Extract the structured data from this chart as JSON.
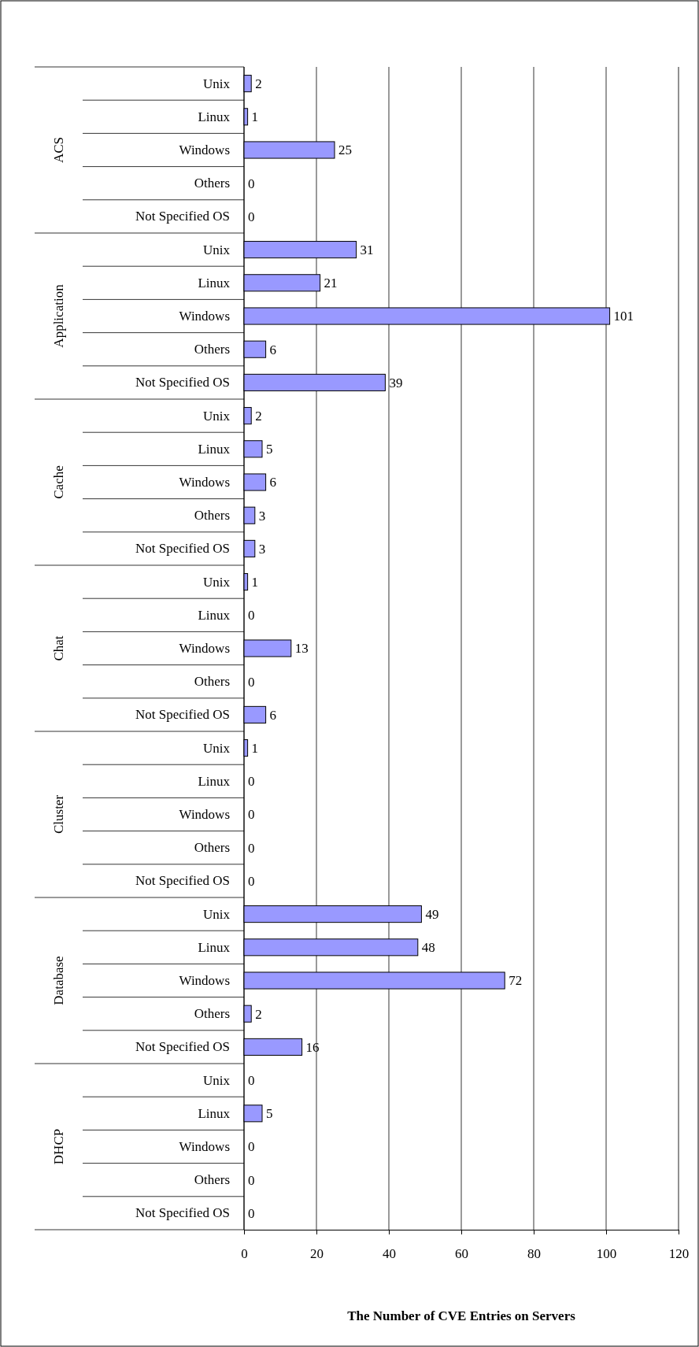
{
  "chart_data": {
    "type": "bar",
    "orientation": "horizontal",
    "xlabel": "The Number of CVE Entries on Servers",
    "categories": [
      "Unix",
      "Linux",
      "Windows",
      "Others",
      "Not Specified OS",
      "Unix",
      "Linux",
      "Windows",
      "Others",
      "Not Specified OS",
      "Unix",
      "Linux",
      "Windows",
      "Others",
      "Not Specified OS",
      "Unix",
      "Linux",
      "Windows",
      "Others",
      "Not Specified OS",
      "Unix",
      "Linux",
      "Windows",
      "Others",
      "Not Specified OS",
      "Unix",
      "Linux",
      "Windows",
      "Others",
      "Not Specified OS",
      "Unix",
      "Linux",
      "Windows",
      "Others",
      "Not Specified OS"
    ],
    "values": [
      2,
      1,
      25,
      0,
      0,
      31,
      21,
      101,
      6,
      39,
      2,
      5,
      6,
      3,
      3,
      1,
      0,
      13,
      0,
      6,
      1,
      0,
      0,
      0,
      0,
      49,
      48,
      72,
      2,
      16,
      0,
      5,
      0,
      0,
      0
    ],
    "color": "#9999ff",
    "annotations": [
      "ACS",
      "Application",
      "Cache",
      "Chat",
      "Cluster",
      "Database",
      "DHCP"
    ],
    "xlim": [
      0,
      120
    ],
    "xticks": [
      0,
      20,
      40,
      60,
      80,
      100,
      120
    ],
    "grid": "x",
    "data_labels": true
  }
}
